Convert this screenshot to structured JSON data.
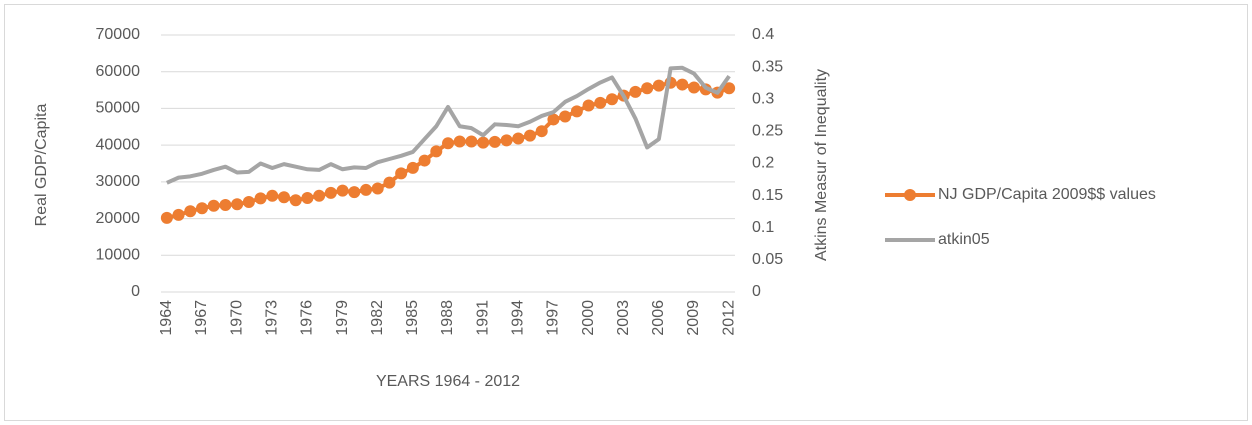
{
  "chart_data": {
    "type": "line",
    "categories": [
      "1964",
      null,
      null,
      "1967",
      null,
      null,
      "1970",
      null,
      null,
      "1973",
      null,
      null,
      "1976",
      null,
      null,
      "1979",
      null,
      null,
      "1982",
      null,
      null,
      "1985",
      null,
      null,
      "1988",
      null,
      null,
      "1991",
      null,
      null,
      "1994",
      null,
      null,
      "1997",
      null,
      null,
      "2000",
      null,
      null,
      "2003",
      null,
      null,
      "2006",
      null,
      null,
      "2009",
      null,
      null,
      "2012"
    ],
    "x_label": "YEARS 1964 - 2012",
    "y_label": "Real GDP/Capita",
    "y2_label": "Atkins Measur of Inequality",
    "ylim": [
      0,
      70000
    ],
    "yticks": [
      0,
      10000,
      20000,
      30000,
      40000,
      50000,
      60000,
      70000
    ],
    "y2lim": [
      0,
      0.4
    ],
    "y2ticks": [
      0,
      0.05,
      0.1,
      0.15,
      0.2,
      0.25,
      0.3,
      0.35,
      0.4
    ],
    "legend": "right",
    "series": [
      {
        "name": "NJ GDP/Capita 2009$$ values",
        "color": "#ed7d31",
        "marker": true,
        "values": [
          20200,
          21000,
          22000,
          22800,
          23500,
          23700,
          23900,
          24500,
          25500,
          26200,
          25800,
          25000,
          25600,
          26200,
          27000,
          27600,
          27200,
          27800,
          28200,
          29800,
          32300,
          33800,
          35800,
          38300,
          40500,
          41000,
          41000,
          40700,
          40900,
          41300,
          41800,
          42600,
          43800,
          47000,
          47800,
          49200,
          50800,
          51500,
          52500,
          53500,
          54500,
          55500,
          56200,
          57000,
          56500,
          55700,
          55200,
          54300,
          55500
        ]
      },
      {
        "name": "atkin05",
        "color": "#a5a5a5",
        "axis": "y2",
        "marker": false,
        "values": [
          0.17,
          0.178,
          0.18,
          0.184,
          0.19,
          0.195,
          0.186,
          0.187,
          0.2,
          0.193,
          0.199,
          0.195,
          0.191,
          0.19,
          0.199,
          0.191,
          0.194,
          0.193,
          0.202,
          0.207,
          0.212,
          0.218,
          0.238,
          0.258,
          0.288,
          0.258,
          0.255,
          0.244,
          0.261,
          0.26,
          0.258,
          0.265,
          0.274,
          0.28,
          0.296,
          0.305,
          0.316,
          0.326,
          0.334,
          0.305,
          0.27,
          0.225,
          0.238,
          0.348,
          0.349,
          0.34,
          0.318,
          0.31,
          0.336
        ]
      }
    ]
  }
}
